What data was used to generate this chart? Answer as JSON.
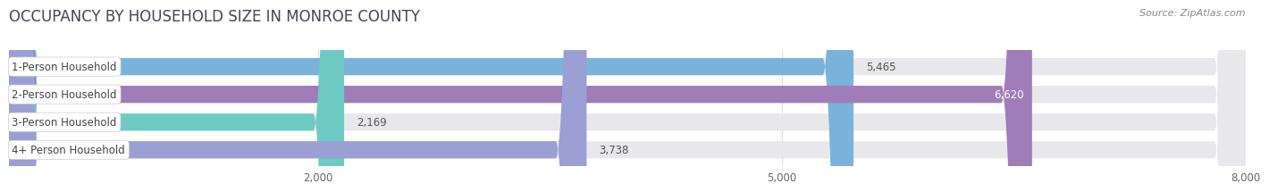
{
  "title": "OCCUPANCY BY HOUSEHOLD SIZE IN MONROE COUNTY",
  "source": "Source: ZipAtlas.com",
  "categories": [
    "1-Person Household",
    "2-Person Household",
    "3-Person Household",
    "4+ Person Household"
  ],
  "values": [
    5465,
    6620,
    2169,
    3738
  ],
  "bar_colors": [
    "#7ab3d9",
    "#a07cb8",
    "#6ecbc4",
    "#9b9fd4"
  ],
  "xlim": [
    0,
    8000
  ],
  "xticks": [
    2000,
    5000,
    8000
  ],
  "background_color": "#ffffff",
  "bar_bg_color": "#e8e8ec",
  "title_fontsize": 12,
  "source_fontsize": 8,
  "bar_height": 0.62,
  "value_label_inside_color": "#ffffff",
  "value_label_outside_color": "#555555"
}
